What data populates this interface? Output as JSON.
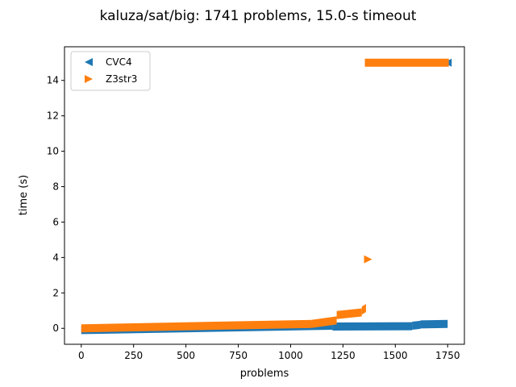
{
  "chart_data": {
    "type": "scatter",
    "title": "kaluza/sat/big: 1741 problems, 15.0-s timeout",
    "xlabel": "problems",
    "ylabel": "time (s)",
    "xlim": [
      -80,
      1830
    ],
    "ylim": [
      -0.9,
      15.9
    ],
    "xticks": [
      0,
      250,
      500,
      750,
      1000,
      1250,
      1500,
      1750
    ],
    "yticks": [
      0,
      2,
      4,
      6,
      8,
      10,
      12,
      14
    ],
    "grid": false,
    "legend_placement": "top-left",
    "series": [
      {
        "name": "CVC4",
        "marker": "triangle-left",
        "color": "#1f77b4",
        "segments": [
          {
            "x0": 0,
            "x1": 1200,
            "y0": -0.1,
            "y1": 0.15
          },
          {
            "x0": 1200,
            "x1": 1580,
            "y0": 0.1,
            "y1": 0.12
          },
          {
            "x0": 1580,
            "x1": 1620,
            "y0": 0.15,
            "y1": 0.2
          },
          {
            "x0": 1620,
            "x1": 1750,
            "y0": 0.22,
            "y1": 0.25
          }
        ],
        "points": [
          {
            "x": 1750,
            "y": 15.0
          }
        ]
      },
      {
        "name": "Z3str3",
        "marker": "triangle-right",
        "color": "#ff7f0e",
        "segments": [
          {
            "x0": 0,
            "x1": 1100,
            "y0": 0.0,
            "y1": 0.25
          },
          {
            "x0": 1100,
            "x1": 1220,
            "y0": 0.25,
            "y1": 0.45
          },
          {
            "x0": 1220,
            "x1": 1340,
            "y0": 0.75,
            "y1": 0.9
          },
          {
            "x0": 1340,
            "x1": 1360,
            "y0": 1.0,
            "y1": 1.15
          }
        ],
        "points": [
          {
            "x": 1370,
            "y": 3.9
          }
        ],
        "timeout_segment": {
          "x0": 1370,
          "x1": 1740,
          "y": 15.0
        }
      }
    ]
  }
}
